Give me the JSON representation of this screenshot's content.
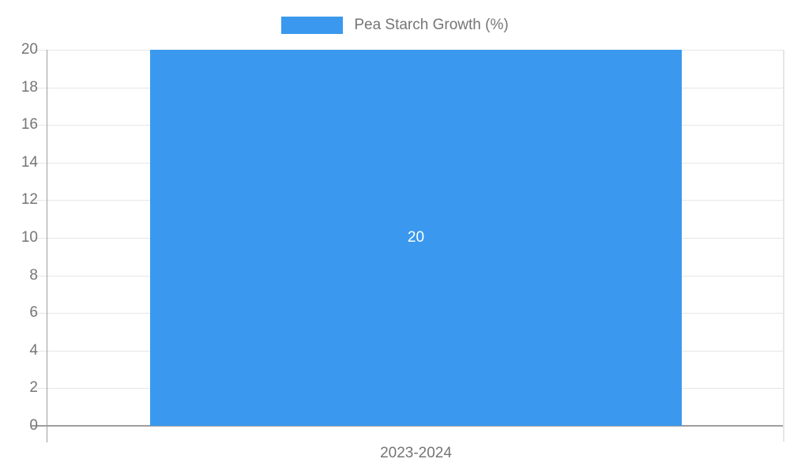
{
  "chart_data": {
    "type": "bar",
    "title": "",
    "categories": [
      "2023-2024"
    ],
    "series": [
      {
        "name": "Pea Starch Growth (%)",
        "values": [
          20
        ],
        "color": "#3A99EE"
      }
    ],
    "bar_labels": [
      "20"
    ],
    "ylim": [
      0,
      20
    ],
    "yticks": [
      0,
      2,
      4,
      6,
      8,
      10,
      12,
      14,
      16,
      18,
      20
    ],
    "xlabel": "",
    "ylabel": "",
    "grid": true,
    "legend_position": "top",
    "colors": {
      "bar": "#3A99EE",
      "axis_text": "#757575",
      "legend_text": "#757575",
      "gridline": "#E6E6E6",
      "axis_line": "#9E9E9E",
      "bar_label_text": "#FFFFFF",
      "background": "#FFFFFF"
    }
  },
  "legend": {
    "label": "Pea Starch Growth (%)"
  },
  "x_axis": {
    "category": "2023-2024"
  },
  "bar": {
    "value_label": "20"
  }
}
